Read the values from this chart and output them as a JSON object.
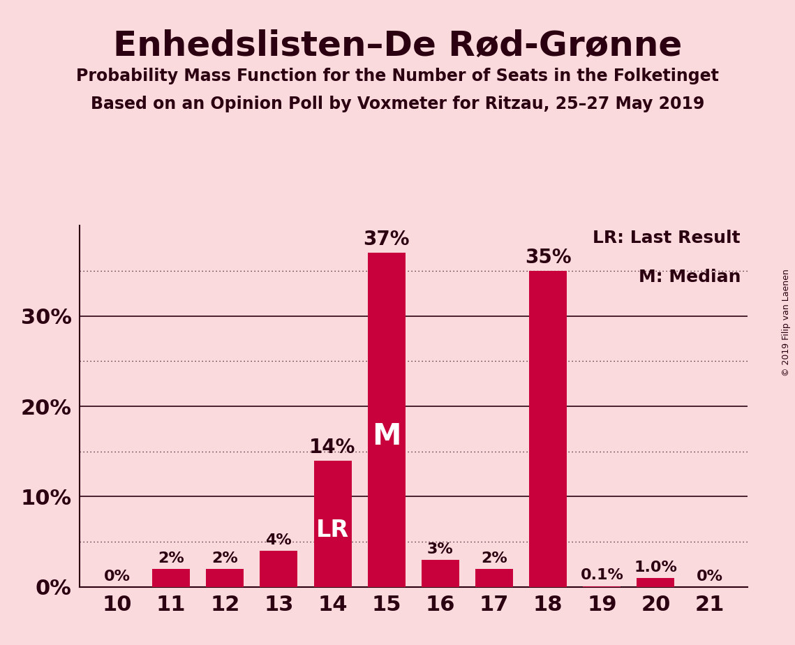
{
  "title": "Enhedslisten–De Rød-Grønne",
  "subtitle1": "Probability Mass Function for the Number of Seats in the Folketinget",
  "subtitle2": "Based on an Opinion Poll by Voxmeter for Ritzau, 25–27 May 2019",
  "copyright": "© 2019 Filip van Laenen",
  "seats": [
    10,
    11,
    12,
    13,
    14,
    15,
    16,
    17,
    18,
    19,
    20,
    21
  ],
  "probabilities": [
    0.0,
    2.0,
    2.0,
    4.0,
    14.0,
    37.0,
    3.0,
    2.0,
    35.0,
    0.1,
    1.0,
    0.0
  ],
  "bar_color": "#C8003C",
  "background_color": "#FADADD",
  "text_color": "#2b0010",
  "last_result_seat": 14,
  "median_seat": 15,
  "ylim": [
    0,
    40
  ],
  "yticks": [
    0,
    10,
    20,
    30
  ],
  "solid_grid": [
    10,
    20,
    30
  ],
  "dotted_grid": [
    5,
    15,
    25,
    35
  ],
  "legend_lr": "LR: Last Result",
  "legend_m": "M: Median",
  "title_fontsize": 36,
  "subtitle_fontsize": 17,
  "tick_fontsize": 22,
  "bar_label_fontsize_small": 16,
  "bar_label_fontsize_large": 20,
  "lr_fontsize": 24,
  "m_fontsize": 30,
  "legend_fontsize": 18,
  "copyright_fontsize": 9
}
